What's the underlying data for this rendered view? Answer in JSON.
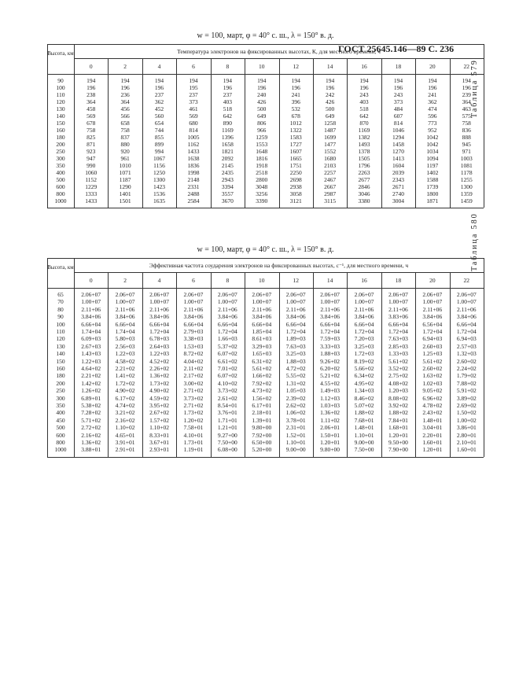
{
  "header": {
    "text": "ГОСТ 25645.146—89  С. 236"
  },
  "tables": [
    {
      "label": "Таблица 579",
      "title": "w = 100, март, φ = 40° с. ш., λ = 150° в. д.",
      "row_header": "Высота, км",
      "group_header": "Температура электронов на фиксированных высотах, К, для местного времени, ч",
      "heights": [
        "90",
        "100",
        "110",
        "120",
        "130",
        "140",
        "150",
        "160",
        "180",
        "200",
        "250",
        "300",
        "350",
        "400",
        "500",
        "600",
        "800",
        "1000"
      ],
      "columns": [
        {
          "label": "0",
          "values": [
            "194",
            "196",
            "238",
            "364",
            "458",
            "569",
            "678",
            "758",
            "825",
            "871",
            "923",
            "947",
            "990",
            "1060",
            "1152",
            "1229",
            "1333",
            "1433"
          ]
        },
        {
          "label": "2",
          "values": [
            "194",
            "196",
            "236",
            "364",
            "456",
            "566",
            "658",
            "758",
            "837",
            "880",
            "920",
            "961",
            "1010",
            "1071",
            "1187",
            "1290",
            "1401",
            "1501"
          ]
        },
        {
          "label": "4",
          "values": [
            "194",
            "196",
            "237",
            "362",
            "452",
            "560",
            "654",
            "744",
            "855",
            "899",
            "994",
            "1067",
            "1156",
            "1250",
            "1300",
            "1423",
            "1536",
            "1635"
          ]
        },
        {
          "label": "6",
          "values": [
            "194",
            "195",
            "237",
            "373",
            "461",
            "569",
            "680",
            "814",
            "1005",
            "1162",
            "1433",
            "1638",
            "1836",
            "1998",
            "2148",
            "2331",
            "2488",
            "2584"
          ]
        },
        {
          "label": "8",
          "values": [
            "194",
            "196",
            "237",
            "403",
            "518",
            "642",
            "890",
            "1169",
            "1396",
            "1658",
            "1821",
            "2092",
            "2145",
            "2435",
            "2943",
            "3394",
            "3557",
            "3670"
          ]
        },
        {
          "label": "10",
          "values": [
            "194",
            "196",
            "240",
            "426",
            "500",
            "649",
            "806",
            "966",
            "1259",
            "1553",
            "1648",
            "1816",
            "1918",
            "2518",
            "2800",
            "3048",
            "3256",
            "3390"
          ]
        },
        {
          "label": "12",
          "values": [
            "194",
            "196",
            "241",
            "396",
            "532",
            "678",
            "1012",
            "1322",
            "1583",
            "1727",
            "1607",
            "1665",
            "1751",
            "2250",
            "2698",
            "2938",
            "3058",
            "3121"
          ]
        },
        {
          "label": "14",
          "values": [
            "194",
            "196",
            "242",
            "426",
            "500",
            "649",
            "1258",
            "1487",
            "1699",
            "1477",
            "1552",
            "1680",
            "2103",
            "2257",
            "2467",
            "2667",
            "2987",
            "3115"
          ]
        },
        {
          "label": "16",
          "values": [
            "194",
            "196",
            "243",
            "403",
            "518",
            "642",
            "870",
            "1169",
            "1382",
            "1493",
            "1378",
            "1505",
            "1796",
            "2263",
            "2677",
            "2846",
            "3046",
            "3380"
          ]
        },
        {
          "label": "18",
          "values": [
            "194",
            "196",
            "243",
            "373",
            "484",
            "607",
            "814",
            "1046",
            "1294",
            "1458",
            "1270",
            "1413",
            "1604",
            "2039",
            "2343",
            "2671",
            "2740",
            "3004"
          ]
        },
        {
          "label": "20",
          "values": [
            "194",
            "196",
            "241",
            "362",
            "474",
            "596",
            "773",
            "952",
            "1042",
            "1042",
            "1034",
            "1094",
            "1197",
            "1402",
            "1588",
            "1739",
            "1800",
            "1871"
          ]
        },
        {
          "label": "22",
          "values": [
            "194",
            "196",
            "239",
            "364",
            "463",
            "575",
            "758",
            "836",
            "888",
            "945",
            "971",
            "1003",
            "1081",
            "1178",
            "1255",
            "1300",
            "1359",
            "1459"
          ]
        }
      ]
    },
    {
      "label": "Таблица 580",
      "title": "w = 100, март, φ = 40° с. ш., λ = 150° в. д.",
      "row_header": "Высота, км",
      "group_header": "Эффективная частота соударения электронов на фиксированных высотах, с⁻¹, для местного времени, ч",
      "heights": [
        "65",
        "70",
        "80",
        "90",
        "100",
        "110",
        "120",
        "130",
        "140",
        "150",
        "160",
        "180",
        "200",
        "250",
        "300",
        "350",
        "400",
        "450",
        "500",
        "600",
        "800",
        "1000"
      ],
      "columns": [
        {
          "label": "0",
          "values": [
            "2.06+07",
            "1.00+07",
            "2.11+06",
            "3.84+06",
            "6.66+04",
            "1.74+04",
            "6.09+03",
            "2.67+03",
            "1.43+03",
            "1.22+03",
            "4.64+02",
            "2.21+02",
            "1.42+02",
            "1.26+02",
            "6.89+01",
            "5.38+02",
            "7.28+02",
            "5.71+02",
            "2.72+02",
            "2.16+02",
            "1.36+02",
            "3.88+01"
          ]
        },
        {
          "label": "2",
          "values": [
            "2.06+07",
            "1.00+07",
            "2.11+06",
            "3.84+06",
            "6.66+04",
            "1.74+04",
            "5.80+03",
            "2.56+03",
            "1.22+03",
            "4.58+02",
            "2.21+02",
            "1.41+02",
            "1.72+02",
            "4.90+02",
            "6.17+02",
            "4.74+02",
            "3.21+02",
            "2.16+02",
            "1.10+02",
            "4.65+01",
            "3.91+01",
            "2.91+01"
          ]
        },
        {
          "label": "4",
          "values": [
            "2.06+07",
            "1.00+07",
            "2.11+06",
            "3.84+06",
            "6.66+04",
            "1.72+04",
            "6.78+03",
            "2.64+03",
            "1.22+03",
            "4.52+02",
            "2.26+02",
            "1.36+02",
            "1.73+02",
            "4.90+02",
            "4.59+02",
            "3.95+02",
            "2.67+02",
            "1.57+02",
            "1.10+02",
            "8.33+01",
            "3.67+01",
            "2.93+01"
          ]
        },
        {
          "label": "6",
          "values": [
            "2.06+07",
            "1.00+07",
            "2.11+06",
            "3.84+06",
            "6.66+04",
            "2.79+03",
            "3.38+03",
            "1.53+03",
            "8.72+02",
            "4.04+02",
            "2.11+02",
            "2.17+02",
            "3.00+02",
            "2.71+02",
            "3.73+02",
            "2.71+02",
            "1.73+02",
            "1.20+02",
            "7.58+01",
            "4.10+01",
            "1.73+01",
            "1.19+01"
          ]
        },
        {
          "label": "8",
          "values": [
            "2.06+07",
            "1.00+07",
            "2.11+06",
            "3.84+06",
            "6.66+04",
            "1.72+04",
            "1.66+03",
            "5.37+02",
            "6.07+02",
            "6.61+02",
            "7.01+02",
            "6.07+02",
            "4.10+02",
            "3.73+02",
            "2.61+02",
            "8.54+01",
            "3.76+01",
            "1.71+01",
            "1.21+01",
            "9.27+00",
            "7.50+00",
            "6.08+00"
          ]
        },
        {
          "label": "10",
          "values": [
            "2.06+07",
            "1.00+07",
            "2.11+06",
            "3.84+06",
            "6.66+04",
            "1.85+04",
            "8.61+03",
            "3.29+03",
            "1.65+03",
            "6.31+02",
            "5.61+02",
            "1.66+02",
            "7.92+02",
            "4.73+02",
            "1.56+02",
            "6.17+01",
            "2.18+01",
            "1.39+01",
            "9.80+00",
            "7.92+00",
            "6.50+00",
            "5.20+00"
          ]
        },
        {
          "label": "12",
          "values": [
            "2.06+07",
            "1.00+07",
            "2.11+06",
            "3.84+06",
            "6.66+04",
            "1.72+04",
            "1.89+03",
            "7.63+03",
            "3.25+03",
            "1.88+03",
            "4.72+02",
            "5.55+02",
            "1.31+02",
            "1.05+03",
            "2.39+02",
            "2.62+02",
            "1.06+02",
            "3.78+01",
            "2.31+01",
            "1.52+01",
            "1.10+01",
            "9.00+00"
          ]
        },
        {
          "label": "14",
          "values": [
            "2.06+07",
            "1.00+07",
            "2.11+06",
            "3.84+06",
            "6.66+04",
            "1.72+04",
            "7.59+03",
            "3.33+03",
            "1.88+03",
            "9.26+02",
            "6.20+02",
            "5.21+02",
            "4.55+02",
            "1.49+03",
            "1.12+03",
            "1.03+03",
            "1.36+02",
            "1.11+02",
            "2.06+01",
            "1.50+01",
            "1.20+01",
            "9.80+00"
          ]
        },
        {
          "label": "16",
          "values": [
            "2.06+07",
            "1.00+07",
            "2.11+06",
            "3.84+06",
            "6.66+04",
            "1.72+04",
            "7.20+03",
            "3.25+03",
            "1.72+03",
            "8.19+02",
            "5.66+02",
            "6.34+02",
            "4.95+02",
            "1.34+03",
            "8.46+02",
            "5.07+02",
            "1.88+02",
            "7.68+01",
            "1.48+01",
            "1.10+01",
            "9.00+00",
            "7.50+00"
          ]
        },
        {
          "label": "18",
          "values": [
            "2.06+07",
            "1.00+07",
            "2.11+06",
            "3.83+06",
            "6.66+04",
            "1.72+04",
            "7.63+03",
            "2.85+03",
            "1.33+03",
            "5.61+02",
            "3.52+02",
            "2.75+02",
            "4.08+02",
            "1.20+03",
            "8.08+02",
            "3.92+02",
            "1.88+02",
            "7.84+01",
            "1.68+01",
            "1.20+01",
            "9.50+00",
            "7.90+00"
          ]
        },
        {
          "label": "20",
          "values": [
            "2.06+07",
            "1.00+07",
            "2.11+06",
            "3.84+06",
            "6.56+04",
            "1.72+04",
            "6.94+03",
            "2.60+03",
            "1.25+03",
            "5.61+02",
            "2.60+02",
            "1.63+02",
            "1.02+03",
            "9.05+02",
            "6.96+02",
            "4.78+02",
            "2.43+02",
            "1.48+01",
            "3.04+01",
            "2.20+01",
            "1.60+01",
            "1.20+01"
          ]
        },
        {
          "label": "22",
          "values": [
            "2.06+07",
            "1.00+07",
            "2.11+06",
            "3.84+06",
            "6.66+04",
            "1.72+04",
            "6.94+03",
            "2.57+03",
            "1.32+03",
            "2.60+02",
            "2.24+02",
            "1.79+02",
            "7.88+02",
            "5.91+02",
            "3.89+02",
            "2.69+02",
            "1.50+02",
            "1.00+02",
            "3.86+01",
            "2.80+01",
            "2.10+01",
            "1.60+01"
          ]
        }
      ]
    }
  ]
}
